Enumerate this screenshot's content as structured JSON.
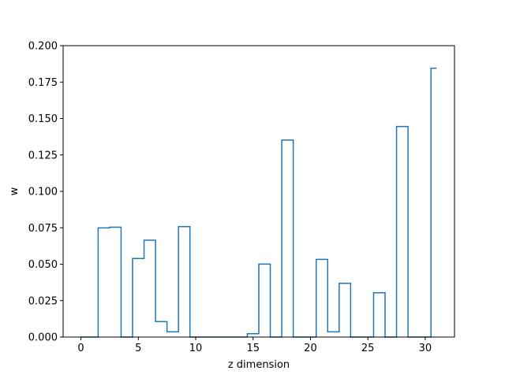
{
  "chart_data": {
    "type": "line",
    "style": "step",
    "title": "",
    "xlabel": "z dimension",
    "ylabel": "w",
    "xlim": [
      -1.55,
      32.55
    ],
    "ylim": [
      0,
      0.2
    ],
    "xticks": [
      0,
      5,
      10,
      15,
      20,
      25,
      30
    ],
    "yticks": [
      0.0,
      0.025,
      0.05,
      0.075,
      0.1,
      0.125,
      0.15,
      0.175,
      0.2
    ],
    "ytick_labels": [
      "0.000",
      "0.025",
      "0.050",
      "0.075",
      "0.100",
      "0.125",
      "0.150",
      "0.175",
      "0.200"
    ],
    "grid": false,
    "line_color": "#1f77b4",
    "x": [
      0,
      1,
      2,
      3,
      4,
      5,
      6,
      7,
      8,
      9,
      10,
      11,
      12,
      13,
      14,
      15,
      16,
      17,
      18,
      19,
      20,
      21,
      22,
      23,
      24,
      25,
      26,
      27,
      28,
      29,
      30,
      31
    ],
    "y": [
      0.0,
      0.0,
      0.0749,
      0.0754,
      0.0,
      0.0539,
      0.0665,
      0.0106,
      0.0036,
      0.0758,
      0.0,
      0.0,
      0.0,
      0.0,
      0.0,
      0.0023,
      0.0501,
      0.0,
      0.1352,
      0.0,
      0.0,
      0.0533,
      0.0036,
      0.0369,
      0.0,
      0.0,
      0.0304,
      0.0,
      0.1445,
      0.0,
      0.0,
      0.1845
    ]
  }
}
